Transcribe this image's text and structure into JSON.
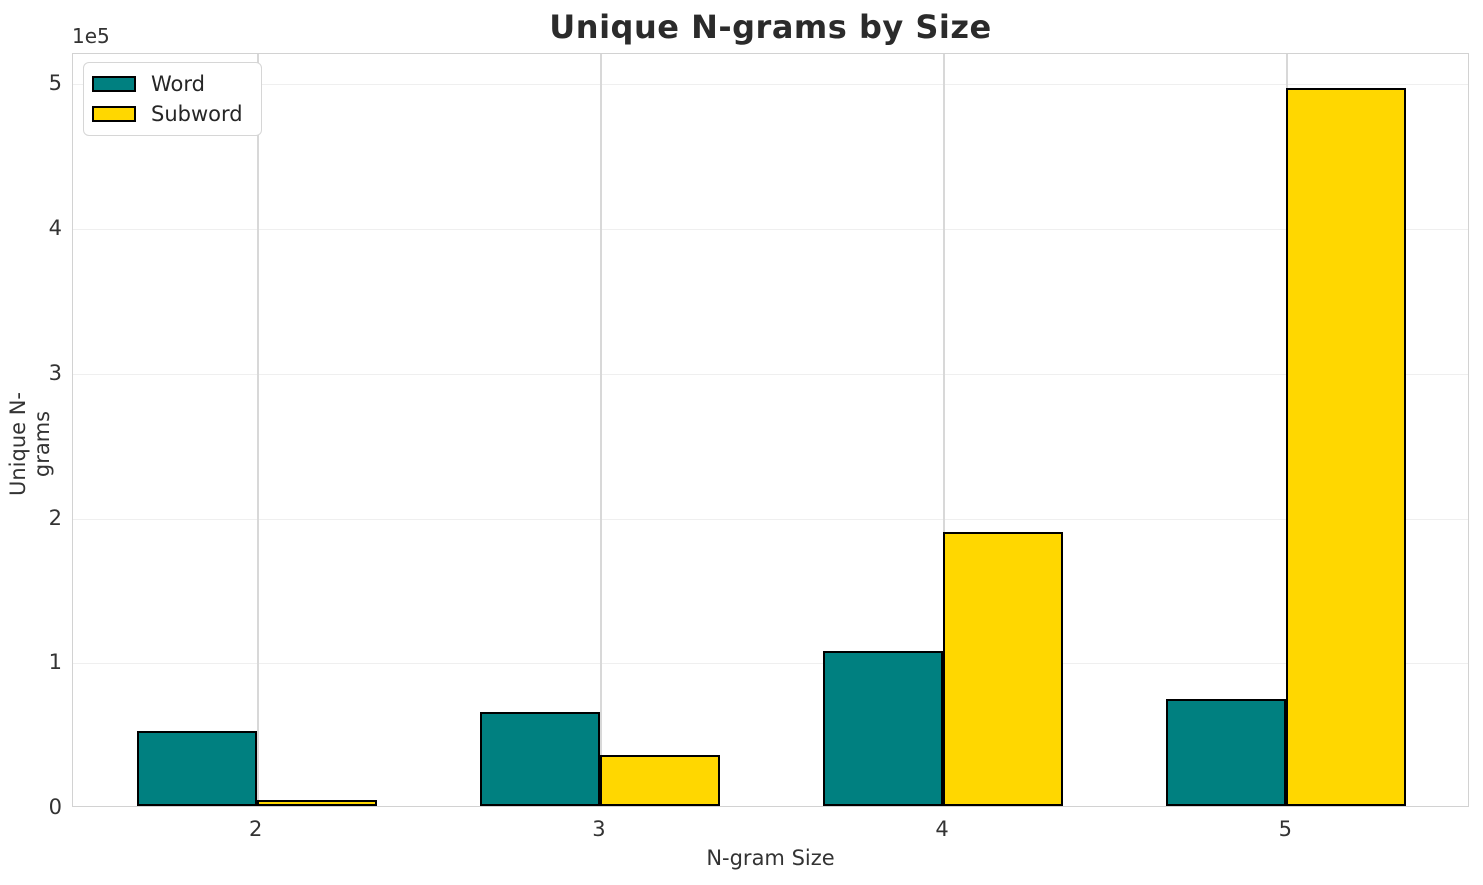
{
  "chart_data": {
    "type": "bar",
    "title": "Unique N-grams by Size",
    "xlabel": "N-gram Size",
    "ylabel": "Unique N-grams",
    "categories": [
      2,
      3,
      4,
      5
    ],
    "series": [
      {
        "name": "Word",
        "color": "#008080",
        "values": [
          52000,
          65000,
          107000,
          74000
        ]
      },
      {
        "name": "Subword",
        "color": "#FFD700",
        "values": [
          4500,
          35000,
          189000,
          496000
        ]
      }
    ],
    "bar_width": 0.35,
    "bar_edge_color": "#000000",
    "xlim": [
      1.465,
      5.535
    ],
    "ylim": [
      0,
      521000
    ],
    "yticks": {
      "values": [
        0,
        100000,
        200000,
        300000,
        400000,
        500000
      ],
      "labels": [
        "0",
        "1",
        "2",
        "3",
        "4",
        "5"
      ],
      "offset_text": "1e5"
    },
    "xticks": {
      "labels": [
        "2",
        "3",
        "4",
        "5"
      ]
    },
    "grid": true,
    "legend_position": "upper left",
    "colors": {
      "background": "#ffffff",
      "spine": "#d2d2d2",
      "grid_horizontal": "#efefef",
      "grid_vertical": "#d8d8d8",
      "text": "#333333",
      "title_text": "#2b2b2b"
    }
  }
}
